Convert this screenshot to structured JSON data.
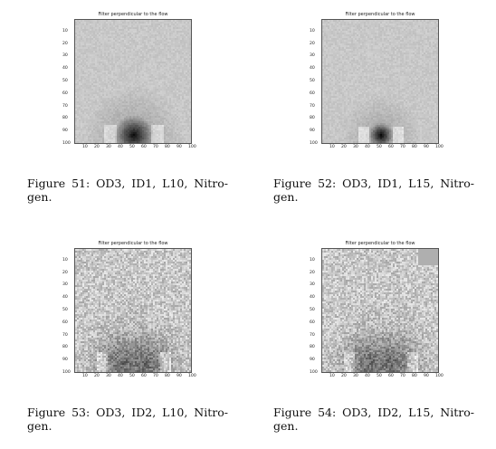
{
  "figures": [
    {
      "plot_title": "Filter perpendicular to the flow",
      "caption_words": [
        "Figure",
        "51:",
        "OD3,",
        "ID1,",
        "L10,",
        "Nitro-"
      ],
      "caption_tail": "gen.",
      "style": "smooth-large",
      "chart_data": {
        "type": "heatmap",
        "title": "Filter perpendicular to the flow",
        "x_ticks": [
          "10",
          "20",
          "30",
          "40",
          "50",
          "60",
          "70",
          "80",
          "90",
          "100"
        ],
        "y_ticks": [
          "10",
          "20",
          "30",
          "40",
          "50",
          "60",
          "70",
          "80",
          "90",
          "100"
        ],
        "xlim": [
          0,
          100
        ],
        "ylim": [
          0,
          100
        ],
        "grid": false
      }
    },
    {
      "plot_title": "Filter perpendicular to the flow",
      "caption_words": [
        "Figure",
        "52:",
        "OD3,",
        "ID1,",
        "L15,",
        "Nitro-"
      ],
      "caption_tail": "gen.",
      "style": "smooth-small",
      "chart_data": {
        "type": "heatmap",
        "title": "Filter perpendicular to the flow",
        "x_ticks": [
          "10",
          "20",
          "30",
          "40",
          "50",
          "60",
          "70",
          "80",
          "90",
          "100"
        ],
        "y_ticks": [
          "10",
          "20",
          "30",
          "40",
          "50",
          "60",
          "70",
          "80",
          "90",
          "100"
        ],
        "xlim": [
          0,
          100
        ],
        "ylim": [
          0,
          100
        ],
        "grid": false
      }
    },
    {
      "plot_title": "Filter perpendicular to the flow",
      "caption_words": [
        "Figure",
        "53:",
        "OD3,",
        "ID2,",
        "L10,",
        "Nitro-"
      ],
      "caption_tail": "gen.",
      "style": "noisy",
      "chart_data": {
        "type": "heatmap",
        "title": "Filter perpendicular to the flow",
        "x_ticks": [
          "10",
          "20",
          "30",
          "40",
          "50",
          "60",
          "70",
          "80",
          "90",
          "100"
        ],
        "y_ticks": [
          "10",
          "20",
          "30",
          "40",
          "50",
          "60",
          "70",
          "80",
          "90",
          "100"
        ],
        "xlim": [
          0,
          100
        ],
        "ylim": [
          0,
          100
        ],
        "grid": false
      }
    },
    {
      "plot_title": "Filter perpendicular to the flow",
      "caption_words": [
        "Figure",
        "54:",
        "OD3,",
        "ID2,",
        "L15,",
        "Nitro-"
      ],
      "caption_tail": "gen.",
      "style": "noisy-cut",
      "chart_data": {
        "type": "heatmap",
        "title": "Filter perpendicular to the flow",
        "x_ticks": [
          "10",
          "20",
          "30",
          "40",
          "50",
          "60",
          "70",
          "80",
          "90",
          "100"
        ],
        "y_ticks": [
          "10",
          "20",
          "30",
          "40",
          "50",
          "60",
          "70",
          "80",
          "90",
          "100"
        ],
        "xlim": [
          0,
          100
        ],
        "ylim": [
          0,
          100
        ],
        "grid": false
      }
    }
  ]
}
